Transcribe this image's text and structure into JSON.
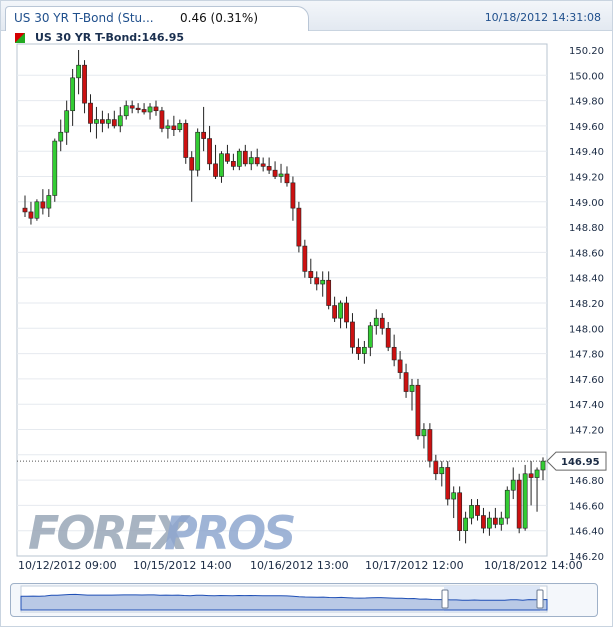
{
  "tab": {
    "title": "US 30 YR T-Bond (Stu...",
    "change": "0.46 (0.31%)"
  },
  "timestamp": "10/18/2012 14:31:08",
  "header": {
    "label": "US 30 YR T-Bond:146.95"
  },
  "watermark": {
    "part1": "FOREX",
    "part2": "PROS"
  },
  "colors": {
    "up": "#33cc33",
    "down": "#cc1111",
    "accent": "#1f4f8c"
  },
  "chart_data": {
    "type": "candlestick",
    "title": "US 30 YR T-Bond",
    "last_value": 146.95,
    "last_label": "146.95",
    "ylim": [
      146.2,
      150.25
    ],
    "y_ticks": [
      "150.20",
      "150.00",
      "149.80",
      "149.60",
      "149.40",
      "149.20",
      "149.00",
      "148.80",
      "148.60",
      "148.40",
      "148.20",
      "148.00",
      "147.80",
      "147.60",
      "147.40",
      "147.20",
      "147.00",
      "146.80",
      "146.60",
      "146.40",
      "146.20"
    ],
    "x_ticks": [
      "10/12/2012 09:00",
      "10/15/2012 14:00",
      "10/16/2012 13:00",
      "10/17/2012 12:00",
      "10/18/2012 14:00"
    ],
    "grid": true,
    "candles": [
      [
        148.95,
        149.05,
        148.88,
        148.92
      ],
      [
        148.92,
        149.0,
        148.82,
        148.87
      ],
      [
        148.87,
        149.02,
        148.85,
        149.0
      ],
      [
        149.0,
        149.1,
        148.9,
        148.95
      ],
      [
        148.95,
        149.1,
        148.88,
        149.05
      ],
      [
        149.05,
        149.5,
        149.0,
        149.48
      ],
      [
        149.48,
        149.65,
        149.4,
        149.55
      ],
      [
        149.55,
        149.8,
        149.45,
        149.72
      ],
      [
        149.72,
        150.05,
        149.6,
        149.98
      ],
      [
        149.98,
        150.2,
        149.85,
        150.08
      ],
      [
        150.08,
        150.12,
        149.7,
        149.78
      ],
      [
        149.78,
        149.85,
        149.55,
        149.62
      ],
      [
        149.62,
        149.75,
        149.5,
        149.65
      ],
      [
        149.65,
        149.72,
        149.55,
        149.62
      ],
      [
        149.62,
        149.7,
        149.58,
        149.65
      ],
      [
        149.65,
        149.72,
        149.58,
        149.6
      ],
      [
        149.6,
        149.75,
        149.55,
        149.68
      ],
      [
        149.68,
        149.8,
        149.65,
        149.76
      ],
      [
        149.76,
        149.8,
        149.7,
        149.74
      ],
      [
        149.74,
        149.78,
        149.7,
        149.73
      ],
      [
        149.73,
        149.78,
        149.69,
        149.71
      ],
      [
        149.71,
        149.78,
        149.65,
        149.75
      ],
      [
        149.75,
        149.8,
        149.68,
        149.72
      ],
      [
        149.72,
        149.75,
        149.55,
        149.58
      ],
      [
        149.58,
        149.65,
        149.5,
        149.6
      ],
      [
        149.6,
        149.68,
        149.52,
        149.57
      ],
      [
        149.57,
        149.65,
        149.55,
        149.62
      ],
      [
        149.62,
        149.65,
        149.3,
        149.35
      ],
      [
        149.35,
        149.4,
        149.0,
        149.25
      ],
      [
        149.25,
        149.58,
        149.2,
        149.55
      ],
      [
        149.55,
        149.75,
        149.4,
        149.5
      ],
      [
        149.5,
        149.6,
        149.25,
        149.3
      ],
      [
        149.3,
        149.45,
        149.18,
        149.2
      ],
      [
        149.2,
        149.4,
        149.15,
        149.38
      ],
      [
        149.38,
        149.45,
        149.3,
        149.32
      ],
      [
        149.32,
        149.38,
        149.25,
        149.28
      ],
      [
        149.28,
        149.42,
        149.25,
        149.4
      ],
      [
        149.4,
        149.45,
        149.28,
        149.3
      ],
      [
        149.3,
        149.4,
        149.25,
        149.35
      ],
      [
        149.35,
        149.42,
        149.28,
        149.3
      ],
      [
        149.3,
        149.35,
        149.24,
        149.28
      ],
      [
        149.28,
        149.35,
        149.22,
        149.25
      ],
      [
        149.25,
        149.32,
        149.18,
        149.2
      ],
      [
        149.2,
        149.3,
        149.15,
        149.22
      ],
      [
        149.22,
        149.28,
        149.12,
        149.15
      ],
      [
        149.15,
        149.2,
        148.85,
        148.95
      ],
      [
        148.95,
        149.0,
        148.6,
        148.65
      ],
      [
        148.65,
        148.7,
        148.4,
        148.45
      ],
      [
        148.45,
        148.55,
        148.35,
        148.4
      ],
      [
        148.4,
        148.45,
        148.3,
        148.35
      ],
      [
        148.35,
        148.45,
        148.25,
        148.38
      ],
      [
        148.38,
        148.45,
        148.15,
        148.18
      ],
      [
        148.18,
        148.25,
        148.05,
        148.08
      ],
      [
        148.08,
        148.22,
        148.0,
        148.2
      ],
      [
        148.2,
        148.25,
        148.0,
        148.05
      ],
      [
        148.05,
        148.12,
        147.8,
        147.85
      ],
      [
        147.85,
        147.92,
        147.75,
        147.8
      ],
      [
        147.8,
        147.9,
        147.72,
        147.85
      ],
      [
        147.85,
        148.05,
        147.78,
        148.02
      ],
      [
        148.02,
        148.15,
        147.95,
        148.08
      ],
      [
        148.08,
        148.12,
        147.95,
        148.0
      ],
      [
        148.0,
        148.05,
        147.82,
        147.85
      ],
      [
        147.85,
        147.95,
        147.7,
        147.75
      ],
      [
        147.75,
        147.82,
        147.6,
        147.65
      ],
      [
        147.65,
        147.72,
        147.45,
        147.5
      ],
      [
        147.5,
        147.6,
        147.35,
        147.55
      ],
      [
        147.55,
        147.6,
        147.12,
        147.15
      ],
      [
        147.15,
        147.25,
        147.05,
        147.2
      ],
      [
        147.2,
        147.25,
        146.9,
        146.95
      ],
      [
        146.95,
        147.0,
        146.8,
        146.85
      ],
      [
        146.85,
        146.95,
        146.75,
        146.9
      ],
      [
        146.9,
        146.95,
        146.6,
        146.65
      ],
      [
        146.65,
        146.75,
        146.5,
        146.7
      ],
      [
        146.7,
        146.75,
        146.32,
        146.4
      ],
      [
        146.4,
        146.55,
        146.3,
        146.5
      ],
      [
        146.5,
        146.65,
        146.45,
        146.6
      ],
      [
        146.6,
        146.65,
        146.48,
        146.52
      ],
      [
        146.52,
        146.58,
        146.38,
        146.42
      ],
      [
        146.42,
        146.55,
        146.36,
        146.5
      ],
      [
        146.5,
        146.58,
        146.42,
        146.45
      ],
      [
        146.45,
        146.55,
        146.4,
        146.5
      ],
      [
        146.5,
        146.75,
        146.45,
        146.72
      ],
      [
        146.72,
        146.9,
        146.65,
        146.8
      ],
      [
        146.8,
        146.85,
        146.38,
        146.42
      ],
      [
        146.42,
        146.92,
        146.4,
        146.85
      ],
      [
        146.85,
        146.95,
        146.6,
        146.82
      ],
      [
        146.82,
        146.9,
        146.55,
        146.88
      ],
      [
        146.88,
        146.98,
        146.8,
        146.95
      ]
    ]
  }
}
